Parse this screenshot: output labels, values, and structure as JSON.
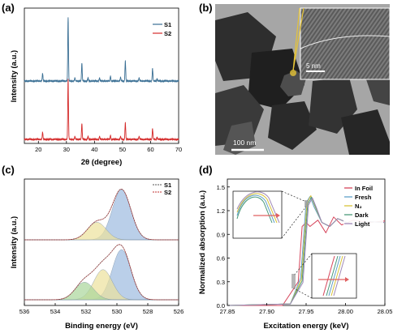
{
  "panels": {
    "a": {
      "label": "(a)",
      "xlabel": "2θ (degree)",
      "ylabel": "Intensity (a.u.)",
      "xticks": [
        "20",
        "30",
        "40",
        "50",
        "60",
        "70"
      ],
      "legend": [
        {
          "name": "S1",
          "color": "#3a6f94"
        },
        {
          "name": "S2",
          "color": "#d42a2a"
        }
      ]
    },
    "b": {
      "label": "(b)",
      "scalebar_main": "100 nm",
      "scalebar_inset": "5 nm"
    },
    "c": {
      "label": "(c)",
      "xlabel": "Binding energy (eV)",
      "ylabel": "Intensity (a.u.)",
      "xticks": [
        "536",
        "534",
        "532",
        "530",
        "528",
        "526"
      ],
      "legend": [
        {
          "name": "S1",
          "color": "#555555"
        },
        {
          "name": "S2",
          "color": "#c03030"
        }
      ]
    },
    "d": {
      "label": "(d)",
      "xlabel": "Excitation energy (keV)",
      "ylabel": "Normalized absorption (a.u.)",
      "xticks": [
        "27.85",
        "27.90",
        "27.95",
        "28.00",
        "28.05"
      ],
      "yticks": [
        "0.0",
        "0.3",
        "0.6",
        "0.9",
        "1.2",
        "1.5"
      ],
      "legend": [
        {
          "name": "In Foil",
          "color": "#d6455b"
        },
        {
          "name": "Fresh",
          "color": "#5fa0c8"
        },
        {
          "name": "N₂",
          "color": "#d8c23a"
        },
        {
          "name": "Dark",
          "color": "#4a9a7a"
        },
        {
          "name": "Light",
          "color": "#a08ab8"
        }
      ]
    }
  },
  "chart_data": [
    {
      "type": "line",
      "title": "",
      "xlabel": "2θ (degree)",
      "ylabel": "Intensity (a.u.)",
      "xlim": [
        15,
        70
      ],
      "series": [
        {
          "name": "S1",
          "peaks": [
            [
              21.5,
              0.12
            ],
            [
              30.6,
              1.0
            ],
            [
              33.0,
              0.05
            ],
            [
              35.5,
              0.28
            ],
            [
              37.7,
              0.05
            ],
            [
              41.8,
              0.05
            ],
            [
              45.7,
              0.08
            ],
            [
              49.3,
              0.06
            ],
            [
              51.0,
              0.32
            ],
            [
              55.9,
              0.05
            ],
            [
              60.7,
              0.2
            ],
            [
              62.3,
              0.04
            ]
          ]
        },
        {
          "name": "S2",
          "peaks": [
            [
              21.5,
              0.12
            ],
            [
              30.6,
              1.0
            ],
            [
              33.0,
              0.05
            ],
            [
              35.5,
              0.26
            ],
            [
              37.7,
              0.05
            ],
            [
              41.8,
              0.05
            ],
            [
              45.7,
              0.07
            ],
            [
              49.3,
              0.05
            ],
            [
              51.0,
              0.28
            ],
            [
              55.9,
              0.05
            ],
            [
              60.7,
              0.18
            ],
            [
              62.3,
              0.04
            ]
          ]
        }
      ]
    },
    {
      "type": "area",
      "title": "",
      "xlabel": "Binding energy (eV)",
      "ylabel": "Intensity (a.u.)",
      "xlim": [
        536,
        526
      ],
      "series": [
        {
          "name": "S1",
          "components": [
            [
              529.7,
              1.0
            ],
            [
              531.3,
              0.35
            ]
          ]
        },
        {
          "name": "S2",
          "components": [
            [
              529.7,
              1.0
            ],
            [
              530.9,
              0.6
            ],
            [
              532.1,
              0.35
            ]
          ]
        }
      ]
    },
    {
      "type": "line",
      "title": "",
      "xlabel": "Excitation energy (keV)",
      "ylabel": "Normalized absorption (a.u.)",
      "xlim": [
        27.85,
        28.05
      ],
      "ylim": [
        0.0,
        1.6
      ],
      "series": [
        {
          "name": "In Foil",
          "x": [
            27.85,
            27.92,
            27.94,
            27.945,
            27.95,
            27.955,
            27.965,
            27.975,
            27.985,
            27.995,
            28.01,
            28.03,
            28.05
          ],
          "y": [
            0.0,
            0.0,
            0.3,
            1.0,
            1.05,
            1.0,
            1.08,
            0.92,
            1.12,
            1.02,
            1.08,
            1.05,
            1.07
          ]
        },
        {
          "name": "Fresh",
          "x": [
            27.85,
            27.93,
            27.943,
            27.95,
            27.955,
            27.96,
            27.97,
            27.98,
            27.99,
            28.01,
            28.03,
            28.05
          ],
          "y": [
            0.0,
            0.02,
            0.35,
            1.3,
            1.38,
            1.25,
            1.05,
            1.0,
            1.1,
            1.02,
            1.06,
            1.05
          ]
        },
        {
          "name": "N₂",
          "x": [
            27.85,
            27.93,
            27.944,
            27.951,
            27.956,
            27.961,
            27.97,
            27.98,
            27.99,
            28.01,
            28.03,
            28.05
          ],
          "y": [
            0.0,
            0.02,
            0.33,
            1.29,
            1.39,
            1.26,
            1.05,
            1.0,
            1.1,
            1.02,
            1.06,
            1.05
          ]
        },
        {
          "name": "Dark",
          "x": [
            27.85,
            27.93,
            27.945,
            27.952,
            27.957,
            27.962,
            27.97,
            27.98,
            27.99,
            28.01,
            28.03,
            28.05
          ],
          "y": [
            0.0,
            0.02,
            0.31,
            1.28,
            1.37,
            1.25,
            1.05,
            1.0,
            1.1,
            1.02,
            1.06,
            1.05
          ]
        },
        {
          "name": "Light",
          "x": [
            27.85,
            27.93,
            27.946,
            27.953,
            27.958,
            27.963,
            27.97,
            27.98,
            27.99,
            28.01,
            28.03,
            28.05
          ],
          "y": [
            0.0,
            0.02,
            0.29,
            1.27,
            1.36,
            1.24,
            1.05,
            1.0,
            1.1,
            1.02,
            1.06,
            1.05
          ]
        }
      ]
    }
  ]
}
